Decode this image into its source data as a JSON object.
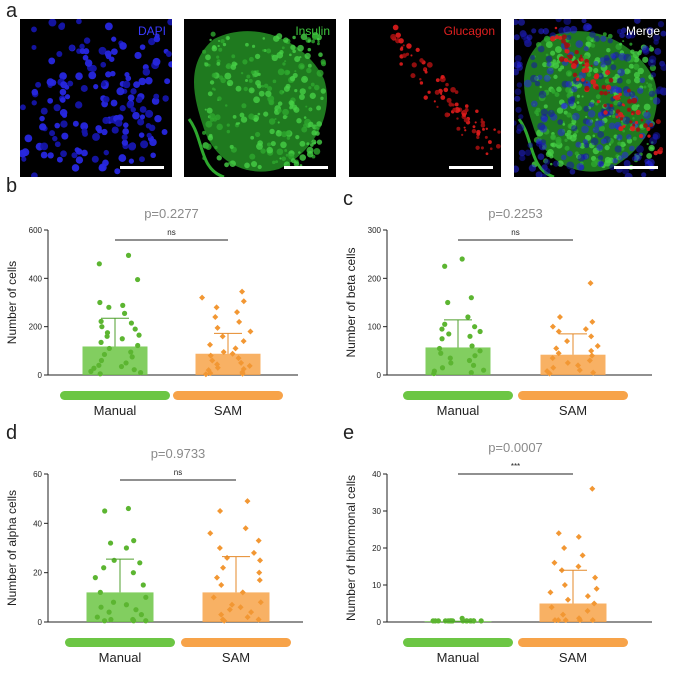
{
  "panels": {
    "a": "a",
    "b": "b",
    "c": "c",
    "d": "d",
    "e": "e"
  },
  "images": [
    {
      "label": "DAPI",
      "color": "#3a3aff"
    },
    {
      "label": "Insulin",
      "color": "#3ec83e"
    },
    {
      "label": "Glucagon",
      "color": "#e02020"
    },
    {
      "label": "Merge",
      "color": "#ffffff"
    }
  ],
  "colors": {
    "manual": "#6cc644",
    "sam": "#f7a349",
    "manual_dot": "#5cb531",
    "sam_dot": "#f29733"
  },
  "chart_data": [
    {
      "id": "b",
      "type": "bar",
      "title": "p=0.2277",
      "ylabel": "Number of cells",
      "categories": [
        "Manual",
        "SAM"
      ],
      "ylim": [
        0,
        600
      ],
      "yticks": [
        "0",
        "200",
        "400",
        "600"
      ],
      "series": [
        {
          "values": [
            118,
            88
          ]
        }
      ],
      "error": [
        [
          0,
          235
        ],
        [
          0,
          172
        ]
      ],
      "significance": "ns",
      "points": [
        [
          495,
          460,
          395,
          300,
          288,
          280,
          255,
          222,
          215,
          200,
          190,
          175,
          165,
          160,
          150,
          135,
          122,
          110,
          95,
          85,
          75,
          60,
          50,
          40,
          35,
          28,
          22,
          15,
          10,
          5
        ],
        [
          345,
          320,
          305,
          280,
          260,
          240,
          220,
          195,
          180,
          160,
          140,
          125,
          110,
          95,
          88,
          80,
          70,
          60,
          50,
          44,
          38,
          30,
          25,
          20,
          12,
          8,
          5,
          3
        ]
      ]
    },
    {
      "id": "c",
      "type": "bar",
      "title": "p=0.2253",
      "ylabel": "Number of beta cells",
      "categories": [
        "Manual",
        "SAM"
      ],
      "ylim": [
        0,
        300
      ],
      "yticks": [
        "0",
        "100",
        "200",
        "300"
      ],
      "series": [
        {
          "values": [
            57,
            42
          ]
        }
      ],
      "error": [
        [
          0,
          114
        ],
        [
          0,
          85
        ]
      ],
      "significance": "ns",
      "points": [
        [
          240,
          225,
          160,
          150,
          120,
          105,
          100,
          95,
          90,
          85,
          80,
          75,
          60,
          55,
          50,
          45,
          40,
          35,
          30,
          25,
          20,
          15,
          10,
          8,
          5,
          3
        ],
        [
          190,
          120,
          110,
          100,
          95,
          90,
          80,
          70,
          60,
          55,
          50,
          45,
          40,
          35,
          30,
          25,
          20,
          15,
          10,
          8,
          5,
          3
        ]
      ]
    },
    {
      "id": "d",
      "type": "bar",
      "title": "p=0.9733",
      "ylabel": "Number of alpha cells",
      "categories": [
        "Manual",
        "SAM"
      ],
      "ylim": [
        0,
        60
      ],
      "yticks": [
        "0",
        "20",
        "40",
        "60"
      ],
      "series": [
        {
          "values": [
            12,
            12
          ]
        }
      ],
      "error": [
        [
          0,
          25.5
        ],
        [
          0,
          26.5
        ]
      ],
      "significance": "ns",
      "points": [
        [
          46,
          45,
          33,
          32,
          30,
          25,
          24,
          22,
          20,
          18,
          15,
          12,
          10,
          8,
          7,
          6,
          5,
          4,
          3,
          2,
          1,
          1,
          0.5,
          0.5,
          0.5
        ],
        [
          49,
          45,
          38,
          36,
          33,
          30,
          28,
          26,
          25,
          22,
          20,
          18,
          17,
          15,
          12,
          10,
          8,
          7,
          6,
          5,
          4,
          3,
          2,
          1,
          1,
          0.5
        ]
      ]
    },
    {
      "id": "e",
      "type": "bar",
      "title": "p=0.0007",
      "ylabel": "Number of bihormonal cells",
      "categories": [
        "Manual",
        "SAM"
      ],
      "ylim": [
        0,
        40
      ],
      "yticks": [
        "0",
        "10",
        "20",
        "30",
        "40"
      ],
      "series": [
        {
          "values": [
            0.2,
            5
          ]
        }
      ],
      "error": [
        [
          0,
          0.2
        ],
        [
          0,
          14
        ]
      ],
      "significance": "***",
      "points": [
        [
          1,
          0.3,
          0.3,
          0.3,
          0.3,
          0.3,
          0.3,
          0.3,
          0.3,
          0.3,
          0.3,
          0.3,
          0.3,
          0.3,
          0.3,
          0.3,
          0.3,
          0.3
        ],
        [
          36,
          24,
          23,
          20,
          18,
          16,
          15,
          14,
          12,
          10,
          9,
          8,
          7,
          6,
          5,
          4,
          3,
          2,
          1,
          0.5,
          0.5,
          0.5,
          0.5,
          0.5
        ]
      ]
    }
  ]
}
